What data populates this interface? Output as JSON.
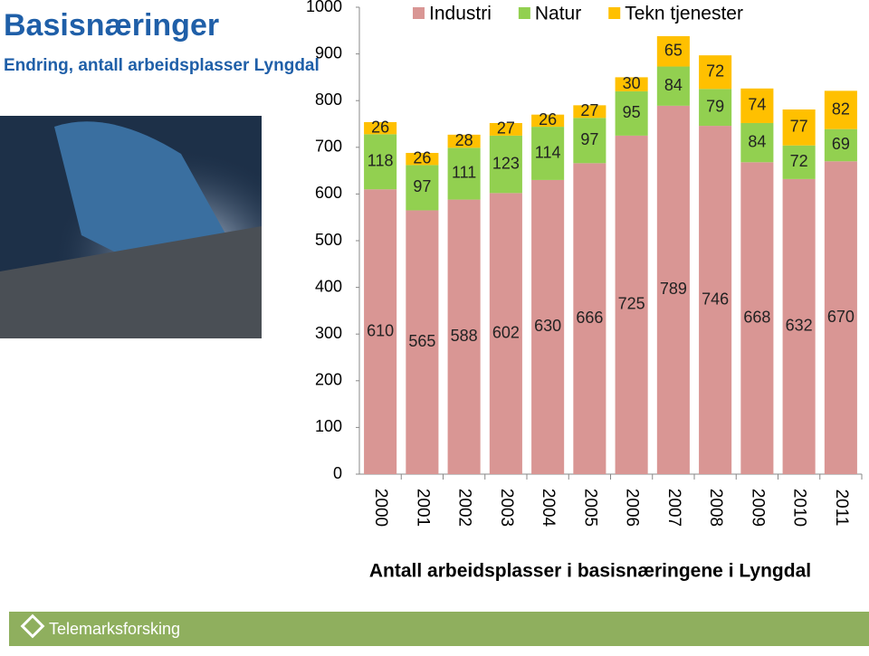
{
  "chart_data": {
    "type": "stacked-bar",
    "title": "Basisnæringer",
    "subtitle": "Endring,  antall arbeidsplasser Lyngdal",
    "subtitle_line2": "Lyngdal",
    "x_label": "Antall arbeidsplasser i basisnæringene i Lyngdal",
    "footer": "Telemarksforsking",
    "categories": [
      "2000",
      "2001",
      "2002",
      "2003",
      "2004",
      "2005",
      "2006",
      "2007",
      "2008",
      "2009",
      "2010",
      "2011"
    ],
    "series": [
      {
        "name": "Industri",
        "color": "#d99694",
        "values": [
          610,
          565,
          588,
          602,
          630,
          666,
          725,
          789,
          746,
          668,
          632,
          670
        ]
      },
      {
        "name": "Natur",
        "color": "#92d050",
        "values": [
          118,
          97,
          111,
          123,
          114,
          97,
          95,
          84,
          79,
          84,
          72,
          69
        ]
      },
      {
        "name": "Tekn tjenester",
        "color": "#ffc000",
        "values": [
          26,
          26,
          28,
          27,
          26,
          27,
          30,
          65,
          72,
          74,
          77,
          82
        ]
      }
    ],
    "ylim": [
      0,
      1000
    ],
    "yticks": [
      0,
      100,
      200,
      300,
      400,
      500,
      600,
      700,
      800,
      900,
      1000
    ],
    "legend": "top"
  }
}
